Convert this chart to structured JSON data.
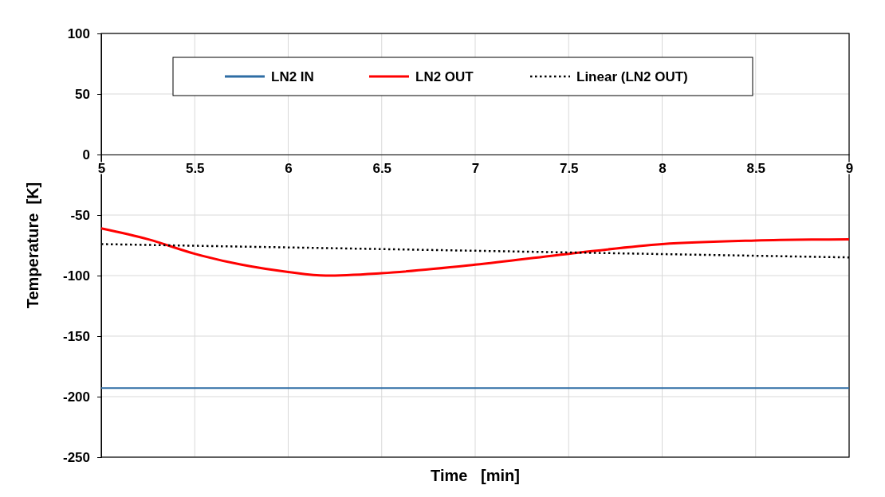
{
  "chart_data": {
    "type": "line",
    "xlabel": "Time   [min]",
    "ylabel": "Temperature  [K]",
    "xlim": [
      5,
      9
    ],
    "xticks": [
      5,
      5.5,
      6,
      6.5,
      7,
      7.5,
      8,
      8.5,
      9
    ],
    "ylim": [
      -250,
      100
    ],
    "yticks": [
      -250,
      -200,
      -150,
      -100,
      -50,
      0,
      50,
      100
    ],
    "grid": true,
    "legend": "top",
    "marker": "none",
    "series": [
      {
        "name": "LN2 IN",
        "color": "#2e6da4",
        "x": [
          5,
          9
        ],
        "values": [
          -193,
          -193
        ],
        "line_style": "solid"
      },
      {
        "name": "LN2 OUT",
        "color": "#ff0000",
        "x": [
          5,
          5.25,
          5.5,
          5.75,
          6,
          6.2,
          6.5,
          7,
          7.5,
          8,
          8.5,
          9
        ],
        "values": [
          -61,
          -70,
          -82,
          -91,
          -97,
          -100,
          -98,
          -91,
          -82,
          -74,
          -71,
          -70
        ],
        "line_style": "solid"
      },
      {
        "name": "Linear (LN2 OUT)",
        "type": "line",
        "color": "#000000",
        "x": [
          5,
          9
        ],
        "values": [
          -74,
          -85
        ],
        "line_style": "dotted"
      }
    ]
  }
}
